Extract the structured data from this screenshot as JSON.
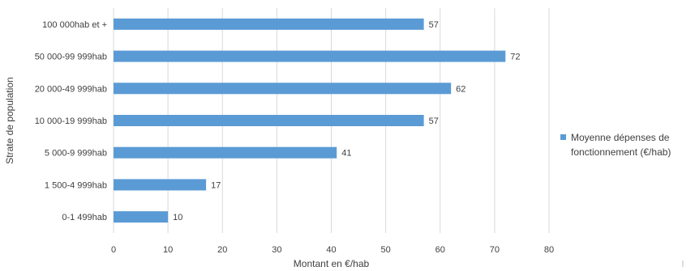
{
  "chart_data": {
    "type": "bar",
    "orientation": "horizontal",
    "categories": [
      "100 000hab et +",
      "50 000-99 999hab",
      "20 000-49 999hab",
      "10 000-19 999hab",
      "5 000-9 999hab",
      "1 500-4 999hab",
      "0-1 499hab"
    ],
    "series": [
      {
        "name": "Moyenne dépenses de fonctionnement (€/hab)",
        "values": [
          57,
          72,
          62,
          57,
          41,
          17,
          10
        ],
        "color": "#5b9bd5"
      }
    ],
    "xlabel": "Montant en €/hab",
    "ylabel": "Strate de population",
    "xlim": [
      0,
      80
    ],
    "xticks": [
      0,
      10,
      20,
      30,
      40,
      50,
      60,
      70,
      80
    ],
    "grid": "vertical",
    "legend": "right",
    "legend_lines": [
      "Moyenne dépenses de",
      "fonctionnement (€/hab)"
    ]
  }
}
